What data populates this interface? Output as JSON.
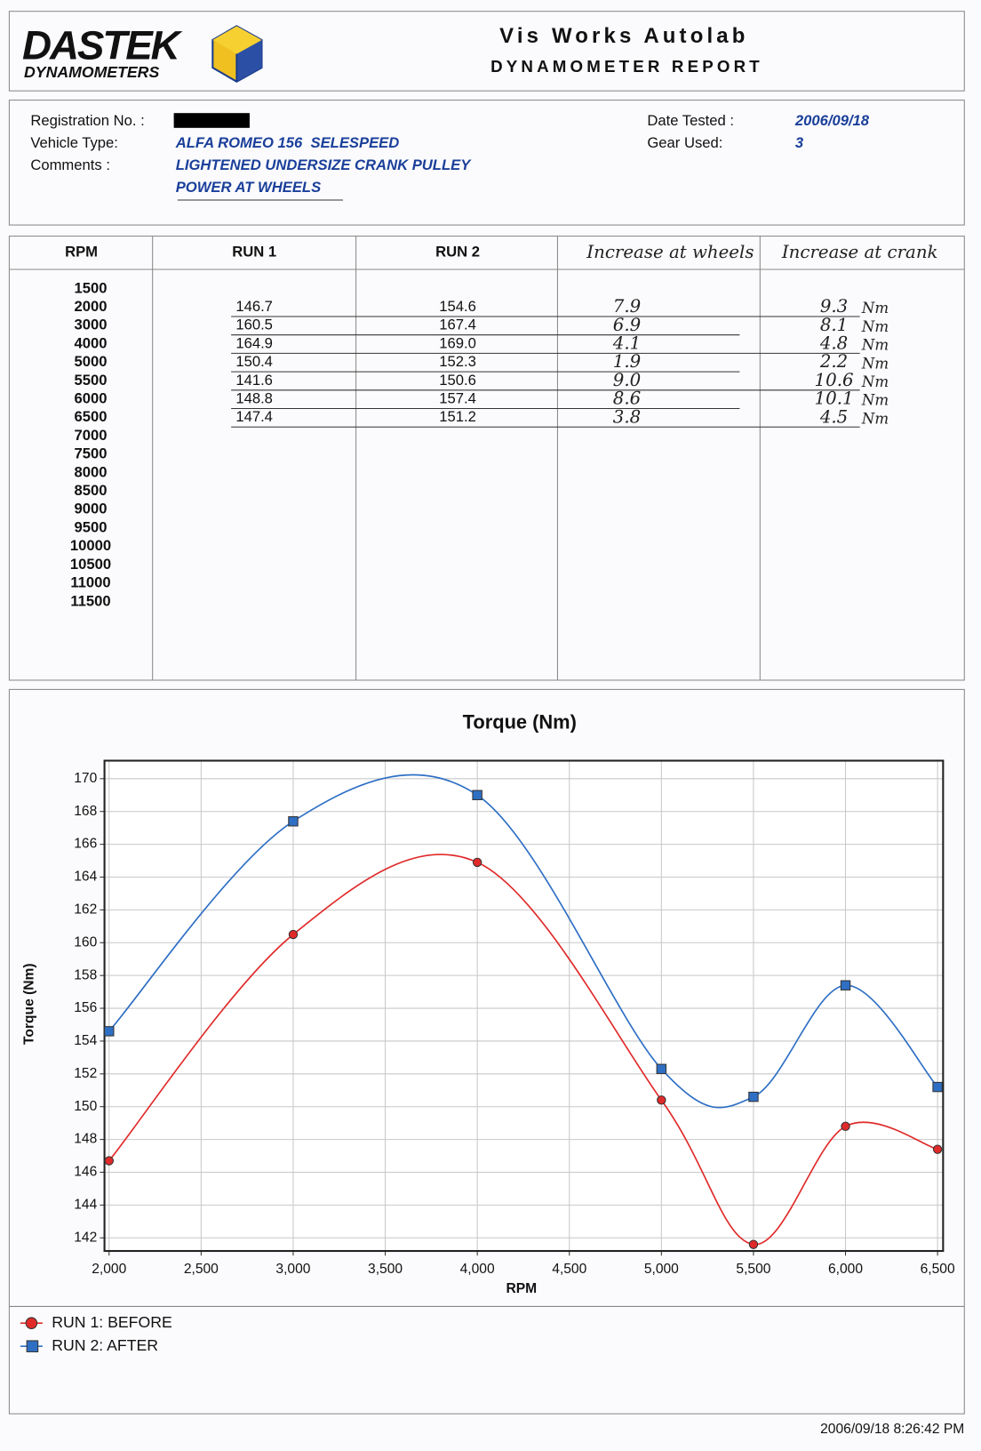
{
  "header": {
    "logo": "DASTEK",
    "logo_sub": "DYNAMOMETERS",
    "title": "Vis Works Autolab",
    "subtitle": "DYNAMOMETER REPORT"
  },
  "info": {
    "registration_label": "Registration No. :",
    "vehicle_label": "Vehicle Type:",
    "vehicle": "ALFA ROMEO 156  SELESPEED",
    "comments_label": "Comments :",
    "comments": [
      "LIGHTENED UNDERSIZE CRANK PULLEY",
      "POWER AT WHEELS"
    ],
    "date_label": "Date Tested :",
    "date": "2006/09/18",
    "gear_label": "Gear Used:",
    "gear": "3"
  },
  "table": {
    "columns": [
      "RPM",
      "RUN 1",
      "RUN 2",
      "Increase at wheels",
      "Increase at crank"
    ],
    "rpm": [
      "1500",
      "2000",
      "3000",
      "4000",
      "5000",
      "5500",
      "6000",
      "6500",
      "7000",
      "7500",
      "8000",
      "8500",
      "9000",
      "9500",
      "10000",
      "10500",
      "11000",
      "11500"
    ],
    "crank_unit": "Nm",
    "readings": [
      {
        "run1": "146.7",
        "run2": "154.6",
        "wheels": "7.9",
        "crank": "9.3"
      },
      {
        "run1": "160.5",
        "run2": "167.4",
        "wheels": "6.9",
        "crank": "8.1"
      },
      {
        "run1": "164.9",
        "run2": "169.0",
        "wheels": "4.1",
        "crank": "4.8"
      },
      {
        "run1": "150.4",
        "run2": "152.3",
        "wheels": "1.9",
        "crank": "2.2"
      },
      {
        "run1": "141.6",
        "run2": "150.6",
        "wheels": "9.0",
        "crank": "10.6"
      },
      {
        "run1": "148.8",
        "run2": "157.4",
        "wheels": "8.6",
        "crank": "10.1"
      },
      {
        "run1": "147.4",
        "run2": "151.2",
        "wheels": "3.8",
        "crank": "4.5"
      }
    ]
  },
  "chart_data": {
    "type": "line",
    "title": "Torque (Nm)",
    "x_label": "RPM",
    "y_label": "Torque (Nm)",
    "x": [
      2000,
      3000,
      4000,
      5000,
      5500,
      6000,
      6500
    ],
    "series": [
      {
        "name": "RUN 1: BEFORE",
        "color": "#e02a2a",
        "marker": "circle",
        "values": [
          146.7,
          160.5,
          164.9,
          150.4,
          141.6,
          148.8,
          147.4
        ]
      },
      {
        "name": "RUN 2: AFTER",
        "color": "#2e6fc4",
        "marker": "square",
        "values": [
          154.6,
          167.4,
          169.0,
          152.3,
          150.6,
          157.4,
          151.2
        ]
      }
    ],
    "xlim": [
      1975,
      6530
    ],
    "ylim": [
      141.2,
      171.1
    ],
    "xticks": [
      {
        "value": 2000,
        "label": "2,000"
      },
      {
        "value": 2500,
        "label": "2,500"
      },
      {
        "value": 3000,
        "label": "3,000"
      },
      {
        "value": 3500,
        "label": "3,500"
      },
      {
        "value": 4000,
        "label": "4,000"
      },
      {
        "value": 4500,
        "label": "4,500"
      },
      {
        "value": 5000,
        "label": "5,000"
      },
      {
        "value": 5500,
        "label": "5,500"
      },
      {
        "value": 6000,
        "label": "6,000"
      },
      {
        "value": 6500,
        "label": "6,500"
      }
    ],
    "yticks": [
      142,
      144,
      146,
      148,
      150,
      152,
      154,
      156,
      158,
      160,
      162,
      164,
      166,
      168,
      170
    ],
    "grid": true,
    "legend": "bottom-left"
  },
  "footer": {
    "timestamp": "2006/09/18 8:26:42 PM"
  }
}
